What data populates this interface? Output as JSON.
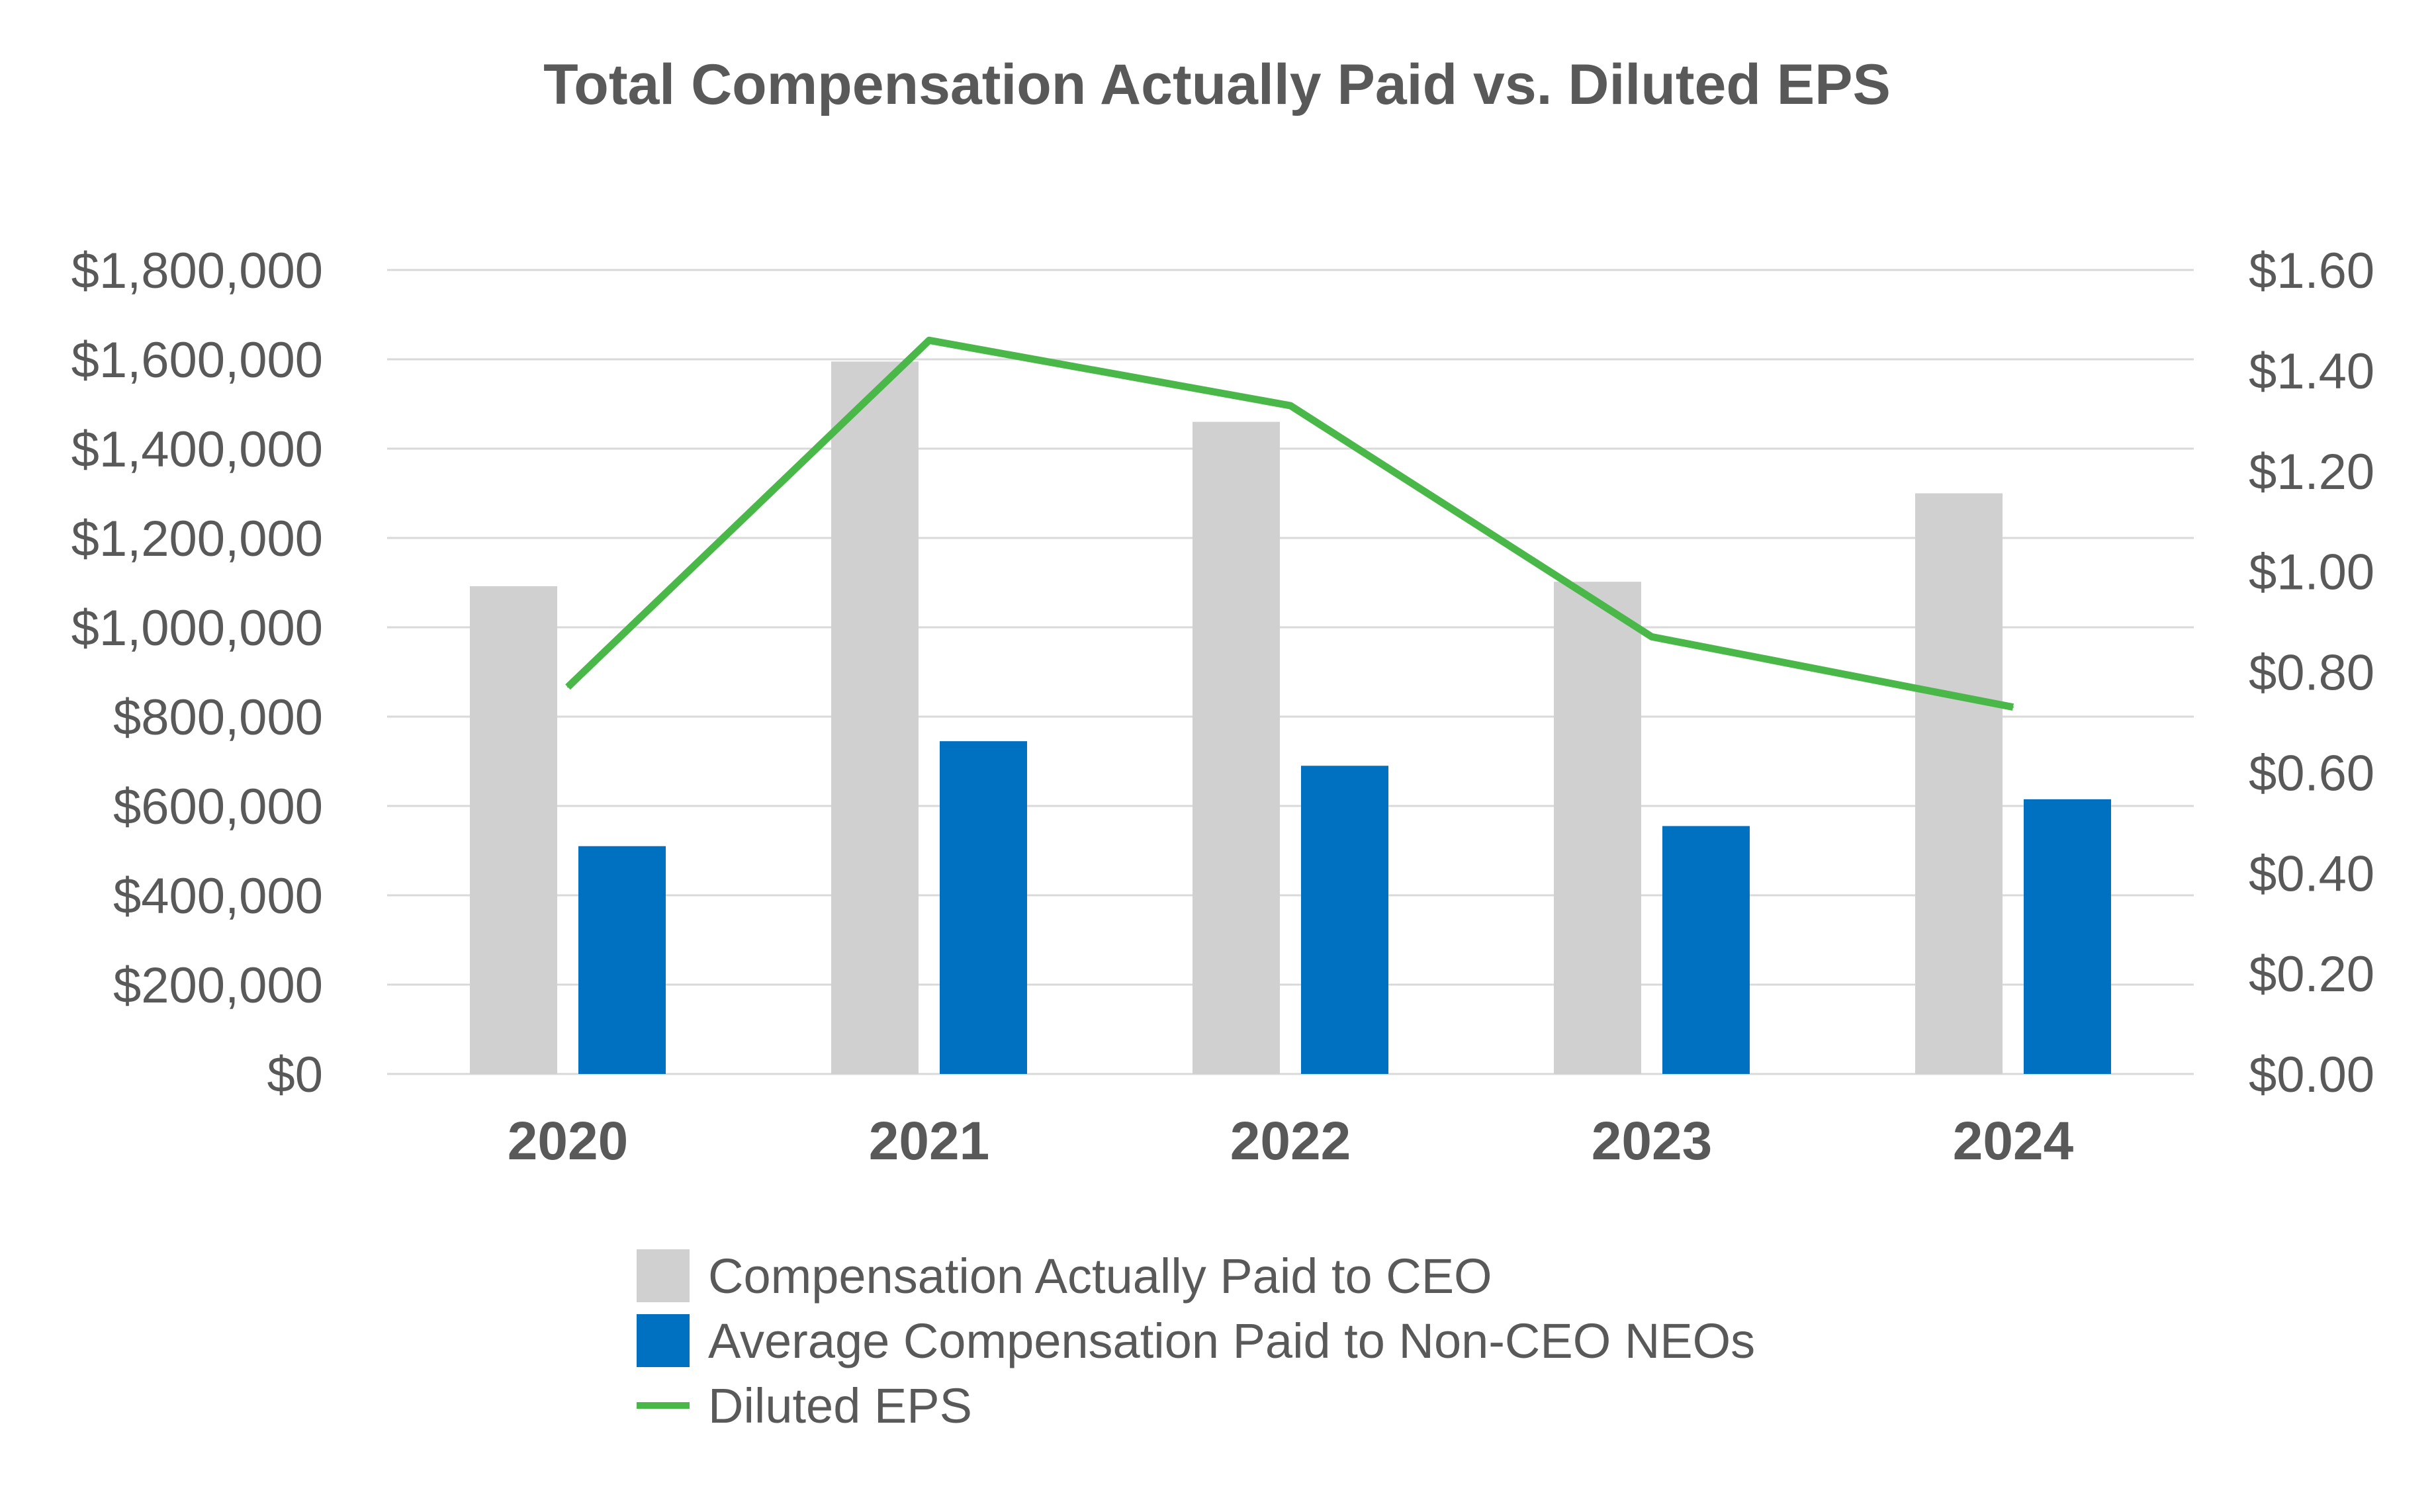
{
  "chart_data": {
    "type": "bar",
    "title": "Total Compensation Actually Paid vs. Diluted EPS",
    "categories": [
      "2020",
      "2021",
      "2022",
      "2023",
      "2024"
    ],
    "series": [
      {
        "name": "Compensation Actually Paid to CEO",
        "kind": "bar",
        "axis": "left",
        "color": "#d0d0d0",
        "values": [
          1092000,
          1595000,
          1460000,
          1102000,
          1300000
        ]
      },
      {
        "name": "Average Compensation Paid to Non-CEO NEOs",
        "kind": "bar",
        "axis": "left",
        "color": "#0070c0",
        "values": [
          510000,
          745000,
          690000,
          555000,
          615000
        ]
      },
      {
        "name": "Diluted EPS",
        "kind": "line",
        "axis": "right",
        "color": "#4ab848",
        "values": [
          0.77,
          1.46,
          1.33,
          0.87,
          0.73
        ]
      }
    ],
    "y_left": {
      "range": [
        0,
        1800000
      ],
      "ticks": [
        0,
        200000,
        400000,
        600000,
        800000,
        1000000,
        1200000,
        1400000,
        1600000,
        1800000
      ],
      "tick_labels": [
        "$0",
        "$200,000",
        "$400,000",
        "$600,000",
        "$800,000",
        "$1,000,000",
        "$1,200,000",
        "$1,400,000",
        "$1,600,000",
        "$1,800,000"
      ]
    },
    "y_right": {
      "range": [
        0,
        1.6
      ],
      "ticks": [
        0,
        0.2,
        0.4,
        0.6,
        0.8,
        1.0,
        1.2,
        1.4,
        1.6
      ],
      "tick_labels": [
        "$0.00",
        "$0.20",
        "$0.40",
        "$0.60",
        "$0.80",
        "$1.00",
        "$1.20",
        "$1.40",
        "$1.60"
      ]
    },
    "grid": true,
    "legend_position": "bottom"
  }
}
